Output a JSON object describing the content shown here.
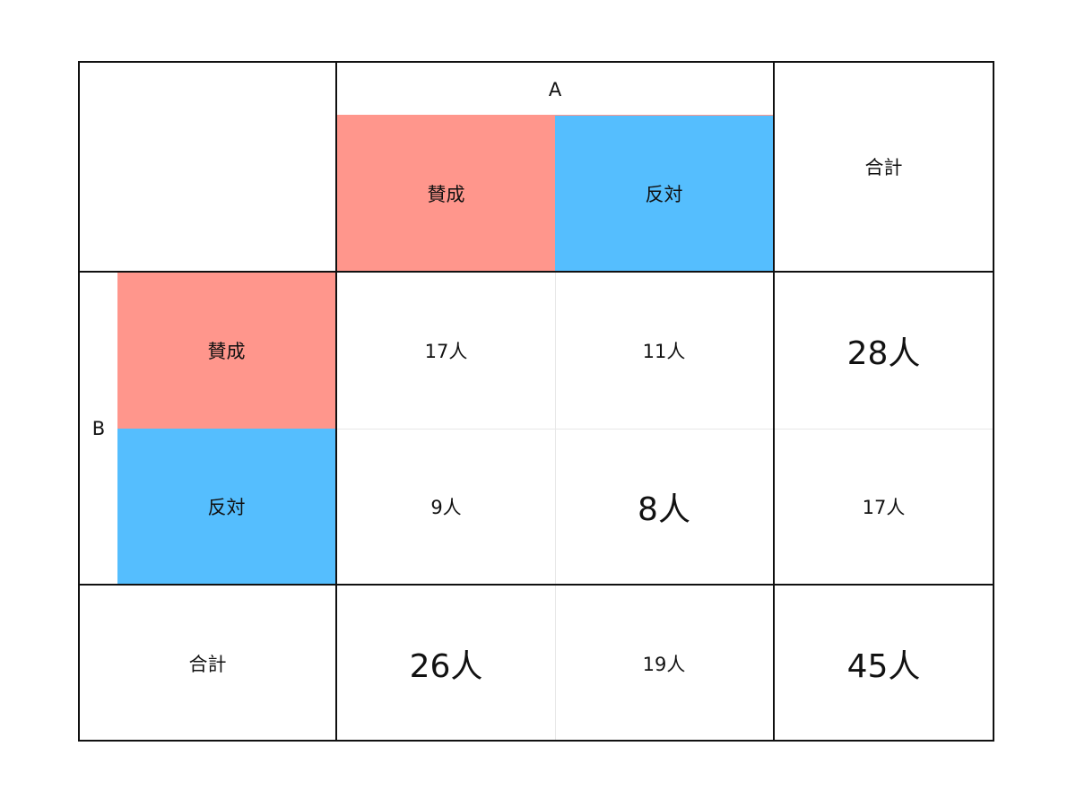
{
  "colors": {
    "agree": "#ff968c",
    "oppose": "#55befe",
    "border": "#111111",
    "inner_grid": "#e8e8e8"
  },
  "table": {
    "col_group_label": "A",
    "row_group_label": "B",
    "total_label": "合計",
    "col_headers": [
      "賛成",
      "反対"
    ],
    "row_headers": [
      "賛成",
      "反対"
    ],
    "cells": [
      [
        "17人",
        "11人"
      ],
      [
        "9人",
        "8人"
      ]
    ],
    "row_totals": [
      "28人",
      "17人"
    ],
    "col_totals": [
      "26人",
      "19人"
    ],
    "grand_total": "45人"
  }
}
